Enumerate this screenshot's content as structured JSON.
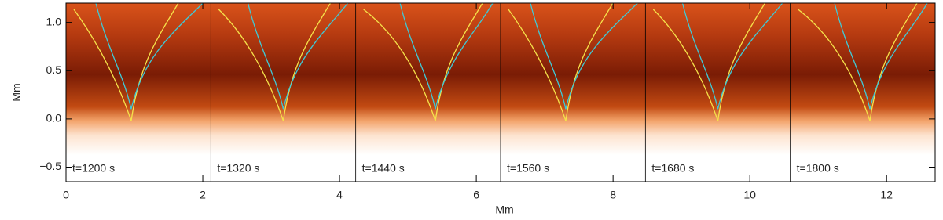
{
  "chart_data": {
    "type": "heatmap",
    "x_label": "Mm",
    "y_label": "Mm",
    "xlim": [
      0,
      12.71
    ],
    "ylim": [
      -0.65,
      1.2
    ],
    "xticks": [
      0,
      2,
      4,
      6,
      8,
      10,
      12
    ],
    "yticks": [
      {
        "value": -0.5,
        "label": "−0.5"
      },
      {
        "value": 0,
        "label": "0.0"
      },
      {
        "value": 0.5,
        "label": "0.5"
      },
      {
        "value": 1,
        "label": "1.0"
      }
    ],
    "panels": [
      "t=1200 s",
      "t=1320 s",
      "t=1440 s",
      "t=1560 s",
      "t=1680 s",
      "t=1800 s"
    ]
  }
}
